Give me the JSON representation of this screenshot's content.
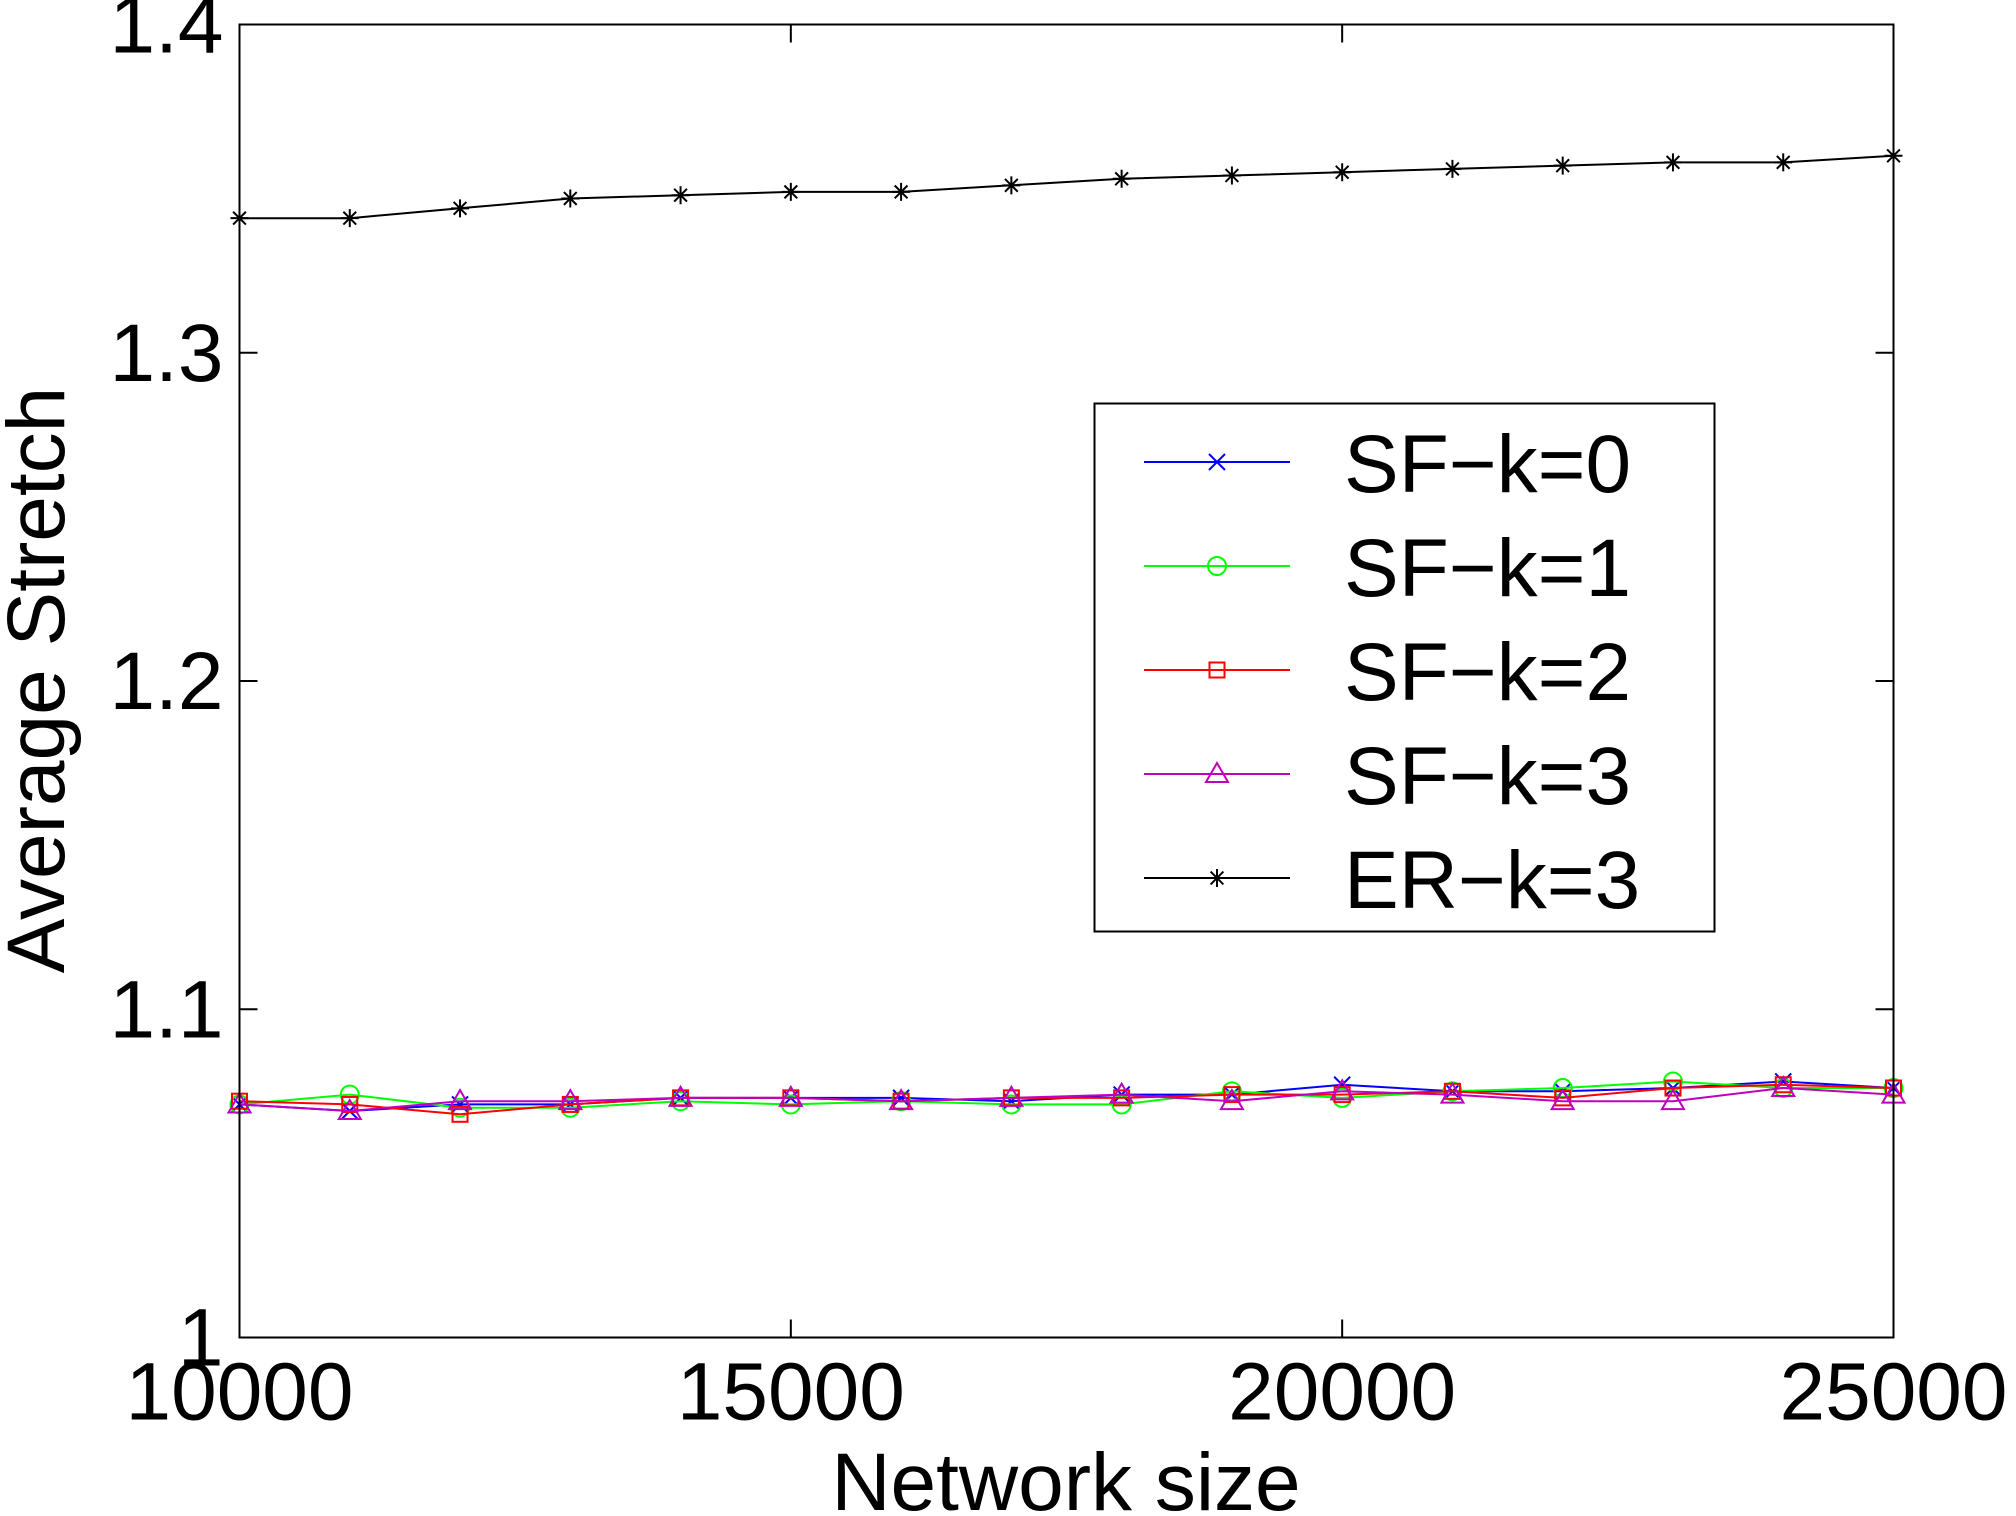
{
  "chart_data": {
    "type": "line",
    "title": "",
    "xlabel": "Network size",
    "ylabel": "Average Stretch",
    "xlim": [
      10000,
      25000
    ],
    "ylim": [
      1,
      1.4
    ],
    "xticks": [
      10000,
      15000,
      20000,
      25000
    ],
    "xtick_labels": [
      "10000",
      "15000",
      "20000",
      "25000"
    ],
    "yticks": [
      1,
      1.1,
      1.2,
      1.3,
      1.4
    ],
    "ytick_labels": [
      "1",
      "1.1",
      "1.2",
      "1.3",
      "1.4"
    ],
    "grid": false,
    "legend_position": "center-right",
    "x": [
      10000,
      11000,
      12000,
      13000,
      14000,
      15000,
      16000,
      17000,
      18000,
      19000,
      20000,
      21000,
      22000,
      23000,
      24000,
      25000
    ],
    "series": [
      {
        "name": "SF−k=0",
        "color": "#0000ff",
        "marker": "x",
        "values": [
          1.071,
          1.069,
          1.071,
          1.071,
          1.073,
          1.073,
          1.073,
          1.072,
          1.074,
          1.074,
          1.077,
          1.075,
          1.075,
          1.076,
          1.078,
          1.076
        ]
      },
      {
        "name": "SF−k=1",
        "color": "#00ff00",
        "marker": "o",
        "values": [
          1.071,
          1.074,
          1.07,
          1.07,
          1.072,
          1.071,
          1.072,
          1.071,
          1.071,
          1.075,
          1.073,
          1.075,
          1.076,
          1.078,
          1.076,
          1.076
        ]
      },
      {
        "name": "SF−k=2",
        "color": "#ff0000",
        "marker": "s",
        "values": [
          1.072,
          1.071,
          1.068,
          1.071,
          1.073,
          1.073,
          1.072,
          1.073,
          1.073,
          1.074,
          1.074,
          1.075,
          1.073,
          1.076,
          1.077,
          1.076
        ]
      },
      {
        "name": "SF−k=3",
        "color": "#bf00bf",
        "marker": "^",
        "values": [
          1.071,
          1.069,
          1.072,
          1.072,
          1.073,
          1.073,
          1.072,
          1.073,
          1.074,
          1.072,
          1.075,
          1.074,
          1.072,
          1.072,
          1.076,
          1.074
        ]
      },
      {
        "name": "ER−k=3",
        "color": "#000000",
        "marker": "*",
        "values": [
          1.341,
          1.341,
          1.344,
          1.347,
          1.348,
          1.349,
          1.349,
          1.351,
          1.353,
          1.354,
          1.355,
          1.356,
          1.357,
          1.358,
          1.358,
          1.36
        ]
      }
    ]
  }
}
